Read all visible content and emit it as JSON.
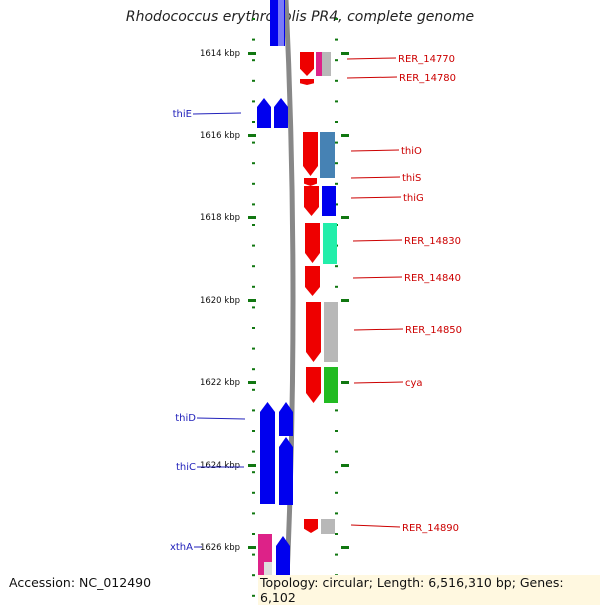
{
  "title": "Rhodococcus erythropolis PR4, complete genome",
  "accession": "Accession: NC_012490",
  "topology": "Topology: circular; Length: 6,516,310 bp; Genes: 6,102",
  "kbp_labels": [
    "1614 kbp",
    "1616 kbp",
    "1618 kbp",
    "1620 kbp",
    "1622 kbp",
    "1624 kbp",
    "1626 kbp"
  ],
  "colors": {
    "blue": "#0000ee",
    "red": "#ee0000",
    "steelblue": "#4682b4",
    "aqua": "#22eeaa",
    "gray": "#b8b8b8",
    "green": "#22bb22",
    "magenta": "#dd2288",
    "orange": "#ee9922",
    "tick": "#117711",
    "label_left": "#2222bb",
    "label_right": "#cc0000"
  },
  "left_labels": [
    "thiE",
    "thiD",
    "thiC",
    "xthA"
  ],
  "right_labels": [
    "RER_14770",
    "RER_14780",
    "thiO",
    "thiS",
    "thiG",
    "RER_14830",
    "RER_14840",
    "RER_14850",
    "cya",
    "RER_14890"
  ]
}
